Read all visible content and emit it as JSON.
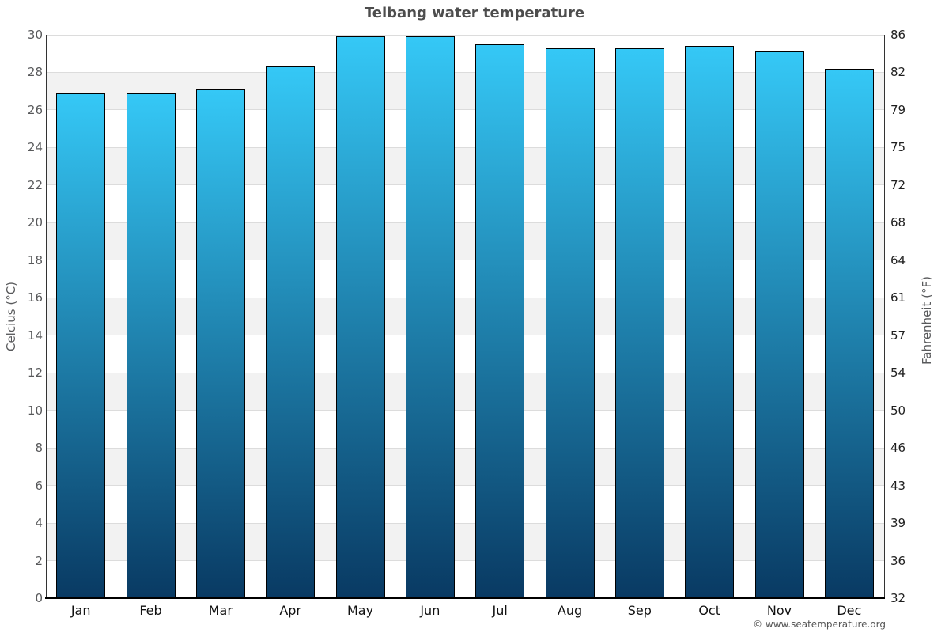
{
  "chart_data": {
    "type": "bar",
    "title": "Telbang water temperature",
    "categories": [
      "Jan",
      "Feb",
      "Mar",
      "Apr",
      "May",
      "Jun",
      "Jul",
      "Aug",
      "Sep",
      "Oct",
      "Nov",
      "Dec"
    ],
    "values": [
      26.9,
      26.9,
      27.1,
      28.3,
      29.9,
      29.9,
      29.5,
      29.3,
      29.3,
      29.4,
      29.1,
      28.2
    ],
    "unit": "°C",
    "axes": {
      "left": {
        "label": "Celcius (°C)",
        "ticks_top_to_bottom": [
          30,
          28,
          26,
          24,
          22,
          20,
          18,
          16,
          14,
          12,
          10,
          8,
          6,
          4,
          2,
          0
        ],
        "range": [
          0,
          30
        ]
      },
      "right": {
        "label": "Fahrenheit (°F)",
        "tick_labels_top_to_bottom": [
          "86",
          "82",
          "79",
          "75",
          "72",
          "68",
          "64",
          "61",
          "57",
          "54",
          "50",
          "46",
          "43",
          "39",
          "36",
          "32"
        ]
      }
    },
    "grid": {
      "band_step_celsius": 2,
      "alternating_bands": true,
      "legend": "none"
    },
    "colors": {
      "bar_gradient_top": "#35c8f6",
      "bar_gradient_bottom": "#093a63",
      "bar_border": "#000000",
      "band_fill": "#f2f2f2",
      "grid_line": "#dcdcdc",
      "axis_line": "#333333",
      "baseline": "#000000",
      "title_text": "#4d4d4d",
      "left_tick_text": "#58595b",
      "right_tick_text": "#1f1f1f",
      "axis_title_text": "#58595b",
      "month_text": "#111111",
      "footer_text": "#555555"
    }
  },
  "footer": {
    "copyright": "© www.seatemperature.org"
  }
}
